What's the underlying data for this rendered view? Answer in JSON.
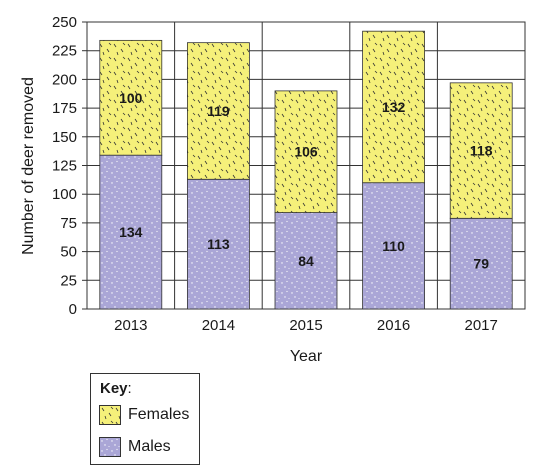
{
  "chart_data": {
    "type": "bar",
    "stacked": true,
    "categories": [
      "2013",
      "2014",
      "2015",
      "2016",
      "2017"
    ],
    "series": [
      {
        "name": "Males",
        "values": [
          134,
          113,
          84,
          110,
          79
        ],
        "color": "#aaa6d6"
      },
      {
        "name": "Females",
        "values": [
          100,
          119,
          106,
          132,
          118
        ],
        "color": "#f5f07a"
      }
    ],
    "xlabel": "Year",
    "ylabel": "Number of deer removed",
    "ylim": [
      0,
      250
    ],
    "yticks": [
      0,
      25,
      50,
      75,
      100,
      125,
      150,
      175,
      200,
      225,
      250
    ],
    "grid": true,
    "legend_placement": "bottom-left"
  },
  "legend": {
    "title": "Key",
    "title_suffix": ":",
    "items": [
      {
        "label": "Females",
        "color": "#f5f07a"
      },
      {
        "label": "Males",
        "color": "#aaa6d6"
      }
    ]
  }
}
